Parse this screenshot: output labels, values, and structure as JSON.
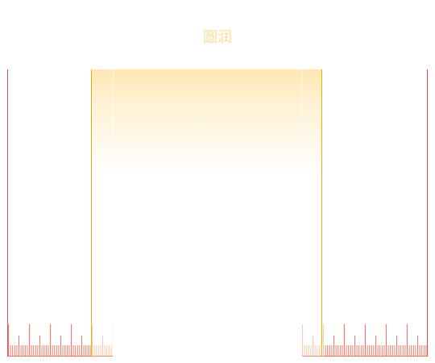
{
  "title": "圆润",
  "colors": {
    "background": "#ffffff",
    "title": "#f7d98a",
    "red": "#e24a4a",
    "gold": "#e6b400",
    "glow": "#ffe7b2",
    "tick_red": "#f06e5b",
    "tick_peach": "#f7c3a1"
  },
  "icons": {
    "left_ruler": "ruler-icon",
    "right_ruler": "ruler-icon"
  }
}
